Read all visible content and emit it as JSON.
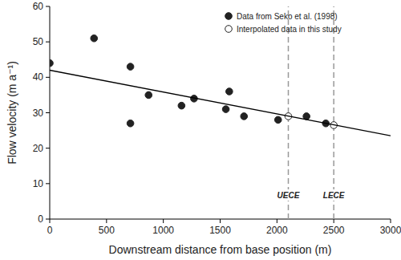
{
  "chart_data": {
    "type": "scatter",
    "x_label": "Downstream distance from base position (m)",
    "y_label": "Flow velocity (m a⁻¹)",
    "xlim": [
      0,
      3000
    ],
    "xticks": [
      0,
      500,
      1000,
      1500,
      2000,
      2500,
      3000
    ],
    "ylim": [
      0,
      60
    ],
    "yticks": [
      0,
      10,
      20,
      30,
      40,
      50,
      60
    ],
    "legend": "upper right",
    "series": [
      {
        "name": "Data from Seko et al. (1998)",
        "color": "#222222",
        "marker": "circle",
        "x": [
          0,
          390,
          710,
          710,
          870,
          1160,
          1270,
          1550,
          1580,
          1710,
          2010,
          2260,
          2430
        ],
        "values": [
          44,
          51,
          43,
          27,
          35,
          32,
          34,
          31,
          36,
          29,
          28,
          29,
          27
        ]
      },
      {
        "name": "Interpolated data in this study",
        "color": "#222222",
        "marker": "open_circle",
        "x": [
          2100,
          2500
        ],
        "values": [
          29,
          26.5
        ]
      },
      {
        "type": "line",
        "color": "#000000",
        "line_style": "solid",
        "x": [
          0,
          3000
        ],
        "values": [
          42,
          23.5
        ]
      }
    ],
    "annotations": [
      {
        "label": "UECE",
        "x": 2100
      },
      {
        "label": "LECE",
        "x": 2500
      }
    ]
  }
}
